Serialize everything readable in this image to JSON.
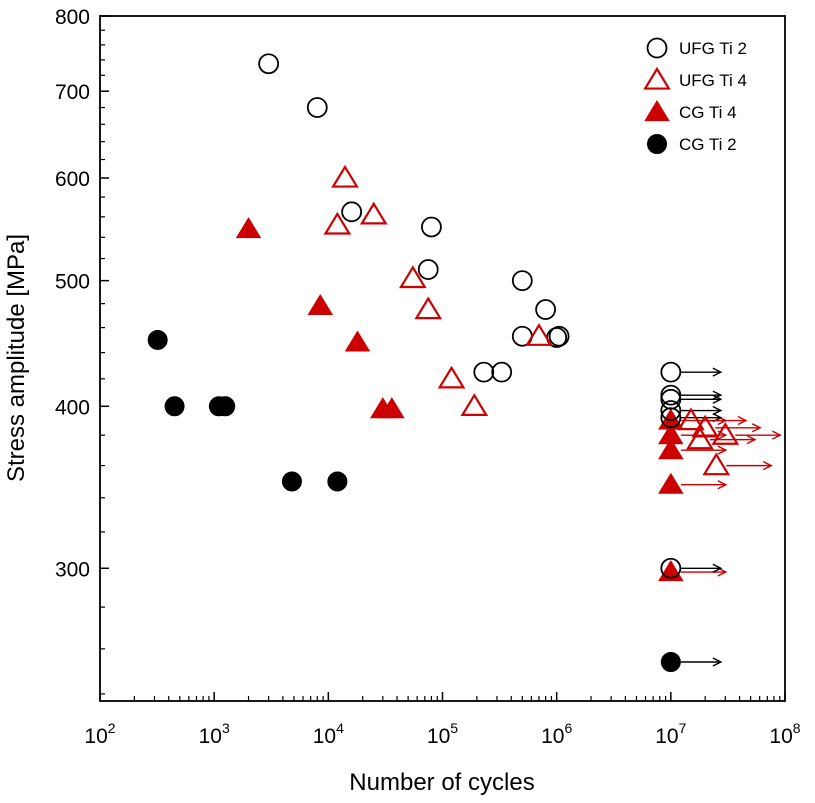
{
  "chart_data": {
    "type": "scatter",
    "xlabel": "Number of cycles",
    "ylabel": "Stress amplitude [MPa]",
    "xscale": "log",
    "yscale": "log",
    "xlim": [
      100,
      100000000
    ],
    "ylim": [
      237,
      800
    ],
    "x_ticks": [
      {
        "value": 100,
        "base": "10",
        "exp": "2"
      },
      {
        "value": 1000,
        "base": "10",
        "exp": "3"
      },
      {
        "value": 10000,
        "base": "10",
        "exp": "4"
      },
      {
        "value": 100000,
        "base": "10",
        "exp": "5"
      },
      {
        "value": 1000000,
        "base": "10",
        "exp": "6"
      },
      {
        "value": 10000000,
        "base": "10",
        "exp": "7"
      },
      {
        "value": 100000000,
        "base": "10",
        "exp": "8"
      }
    ],
    "y_ticks": [
      {
        "value": 300,
        "label": "300"
      },
      {
        "value": 400,
        "label": "400"
      },
      {
        "value": 500,
        "label": "500"
      },
      {
        "value": 600,
        "label": "600"
      },
      {
        "value": 700,
        "label": "700"
      },
      {
        "value": 800,
        "label": "800"
      }
    ],
    "grid": false,
    "legend_position": "top-right",
    "series": [
      {
        "name": "UFG Ti 2",
        "marker": "circle-open",
        "color": "#000000",
        "points": [
          {
            "x": 3000,
            "y": 735
          },
          {
            "x": 8000,
            "y": 680
          },
          {
            "x": 16000,
            "y": 565
          },
          {
            "x": 80000,
            "y": 550
          },
          {
            "x": 75000,
            "y": 510
          },
          {
            "x": 500000,
            "y": 500
          },
          {
            "x": 800000,
            "y": 475
          },
          {
            "x": 500000,
            "y": 453
          },
          {
            "x": 1000000,
            "y": 452
          },
          {
            "x": 1050000,
            "y": 453
          },
          {
            "x": 230000,
            "y": 425
          },
          {
            "x": 330000,
            "y": 425
          },
          {
            "x": 10000000,
            "y": 425,
            "runout": true
          },
          {
            "x": 10000000,
            "y": 408,
            "runout": true
          },
          {
            "x": 10000000,
            "y": 405,
            "runout": true
          },
          {
            "x": 10000000,
            "y": 397,
            "runout": true
          },
          {
            "x": 10000000,
            "y": 392,
            "runout": true
          },
          {
            "x": 10000000,
            "y": 300,
            "runout": true
          }
        ]
      },
      {
        "name": "UFG Ti 4",
        "marker": "triangle-open",
        "color": "#cc0000",
        "points": [
          {
            "x": 14000,
            "y": 600
          },
          {
            "x": 25000,
            "y": 562
          },
          {
            "x": 12000,
            "y": 552
          },
          {
            "x": 55000,
            "y": 502
          },
          {
            "x": 75000,
            "y": 475
          },
          {
            "x": 700000,
            "y": 453
          },
          {
            "x": 120000,
            "y": 420
          },
          {
            "x": 190000,
            "y": 400
          },
          {
            "x": 15000000,
            "y": 390,
            "runout": true
          },
          {
            "x": 20000000,
            "y": 385,
            "runout": true
          },
          {
            "x": 30000000,
            "y": 380,
            "runout": true
          },
          {
            "x": 18000000,
            "y": 377,
            "runout": true
          },
          {
            "x": 25000000,
            "y": 360,
            "runout": true
          }
        ]
      },
      {
        "name": "CG Ti 4",
        "marker": "triangle-filled",
        "color": "#cc0000",
        "points": [
          {
            "x": 2000,
            "y": 548
          },
          {
            "x": 8500,
            "y": 478
          },
          {
            "x": 18000,
            "y": 448
          },
          {
            "x": 30000,
            "y": 398
          },
          {
            "x": 36000,
            "y": 398
          },
          {
            "x": 10000000,
            "y": 390,
            "runout": true
          },
          {
            "x": 10000000,
            "y": 380,
            "runout": true
          },
          {
            "x": 10000000,
            "y": 370,
            "runout": true
          },
          {
            "x": 10000000,
            "y": 348,
            "runout": true
          },
          {
            "x": 10000000,
            "y": 298,
            "runout": true
          }
        ]
      },
      {
        "name": "CG Ti 2",
        "marker": "circle-filled",
        "color": "#000000",
        "points": [
          {
            "x": 320,
            "y": 450
          },
          {
            "x": 450,
            "y": 400
          },
          {
            "x": 1100,
            "y": 400
          },
          {
            "x": 1250,
            "y": 400
          },
          {
            "x": 4800,
            "y": 350
          },
          {
            "x": 12000,
            "y": 350
          },
          {
            "x": 10000000,
            "y": 254,
            "runout": true
          }
        ]
      }
    ]
  }
}
